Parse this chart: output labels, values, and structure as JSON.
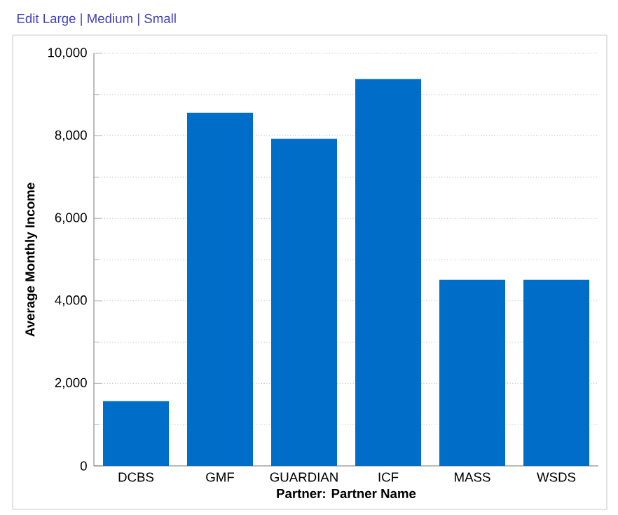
{
  "chart_data": {
    "type": "bar",
    "categories": [
      "DCBS",
      "GMF",
      "GUARDIAN",
      "ICF",
      "MASS",
      "WSDS"
    ],
    "values": [
      1570,
      8560,
      7930,
      9380,
      4510,
      4510
    ],
    "color": "#006ec8",
    "xlabel": "Partner: Partner Name",
    "ylabel": "Average Monthly Income",
    "ylim": [
      0,
      10000
    ],
    "yticks": [
      {
        "value": 0,
        "label": "0"
      },
      {
        "value": 2000,
        "label": "2,000"
      },
      {
        "value": 4000,
        "label": "4,000"
      },
      {
        "value": 6000,
        "label": "6,000"
      },
      {
        "value": 8000,
        "label": "8,000"
      },
      {
        "value": 10000,
        "label": "10,000"
      }
    ],
    "grid": "y",
    "annotations": [
      "Edit  Large | Medium | Small"
    ]
  }
}
